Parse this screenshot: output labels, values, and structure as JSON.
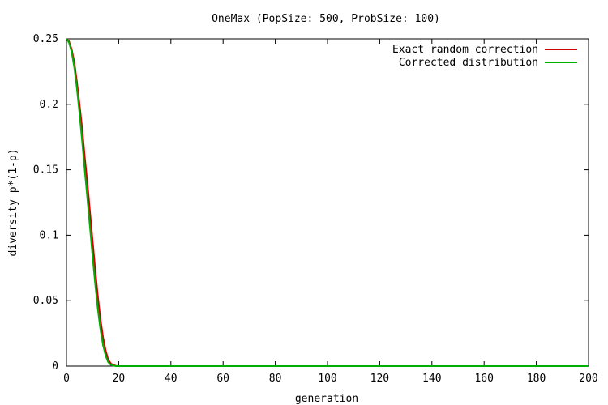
{
  "chart_data": {
    "type": "line",
    "title": "OneMax (PopSize: 500, ProbSize: 100)",
    "xlabel": "generation",
    "ylabel": "diversity p*(1-p)",
    "xlim": [
      0,
      200
    ],
    "ylim": [
      0,
      0.25
    ],
    "xticks": [
      0,
      20,
      40,
      60,
      80,
      100,
      120,
      140,
      160,
      180,
      200
    ],
    "xtick_labels": [
      "0",
      "20",
      "40",
      "60",
      "80",
      "100",
      "120",
      "140",
      "160",
      "180",
      "200"
    ],
    "yticks": [
      0,
      0.05,
      0.1,
      0.15,
      0.2,
      0.25
    ],
    "ytick_labels": [
      "0",
      "0.05",
      "0.1",
      "0.15",
      "0.2",
      "0.25"
    ],
    "grid": false,
    "legend_position": "top-right",
    "series": [
      {
        "name": "Exact random correction",
        "color": "#d40000",
        "x": [
          0,
          1,
          2,
          3,
          4,
          5,
          6,
          7,
          8,
          9,
          10,
          11,
          12,
          13,
          14,
          15,
          16,
          17,
          18,
          19,
          20,
          21,
          22,
          25,
          40,
          60,
          100,
          150,
          200
        ],
        "y": [
          0.25,
          0.248,
          0.242,
          0.232,
          0.217,
          0.2,
          0.182,
          0.16,
          0.14,
          0.118,
          0.096,
          0.074,
          0.054,
          0.036,
          0.022,
          0.012,
          0.005,
          0.002,
          0.0008,
          0.0002,
          0.0,
          0.0,
          0.0,
          0.0,
          0.0,
          0.0,
          0.0,
          0.0,
          0.0
        ]
      },
      {
        "name": "Corrected distribution",
        "color": "#00b000",
        "x": [
          0,
          1,
          2,
          3,
          4,
          5,
          6,
          7,
          8,
          9,
          10,
          11,
          12,
          13,
          14,
          15,
          16,
          17,
          18,
          19,
          20,
          21,
          22,
          25,
          40,
          60,
          100,
          150,
          200
        ],
        "y": [
          0.25,
          0.247,
          0.24,
          0.228,
          0.212,
          0.193,
          0.172,
          0.15,
          0.128,
          0.106,
          0.084,
          0.063,
          0.044,
          0.028,
          0.016,
          0.008,
          0.003,
          0.001,
          0.0003,
          0.0,
          0.0,
          0.0,
          0.0,
          0.0,
          0.0,
          0.0,
          0.0,
          0.0,
          0.0
        ]
      }
    ]
  }
}
